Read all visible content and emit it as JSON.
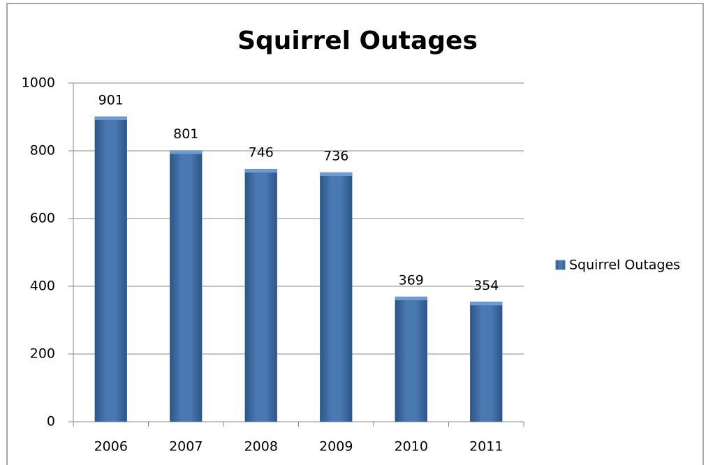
{
  "chart_data": {
    "type": "bar",
    "title": "Squirrel Outages",
    "categories": [
      "2006",
      "2007",
      "2008",
      "2009",
      "2010",
      "2011"
    ],
    "series": [
      {
        "name": "Squirrel Outages",
        "color": "#4f81bd",
        "values": [
          901,
          801,
          746,
          736,
          369,
          354
        ]
      }
    ],
    "ylim": [
      0,
      1000
    ],
    "yticks": [
      0,
      200,
      400,
      600,
      800,
      1000
    ],
    "grid": true,
    "legend": "right"
  }
}
